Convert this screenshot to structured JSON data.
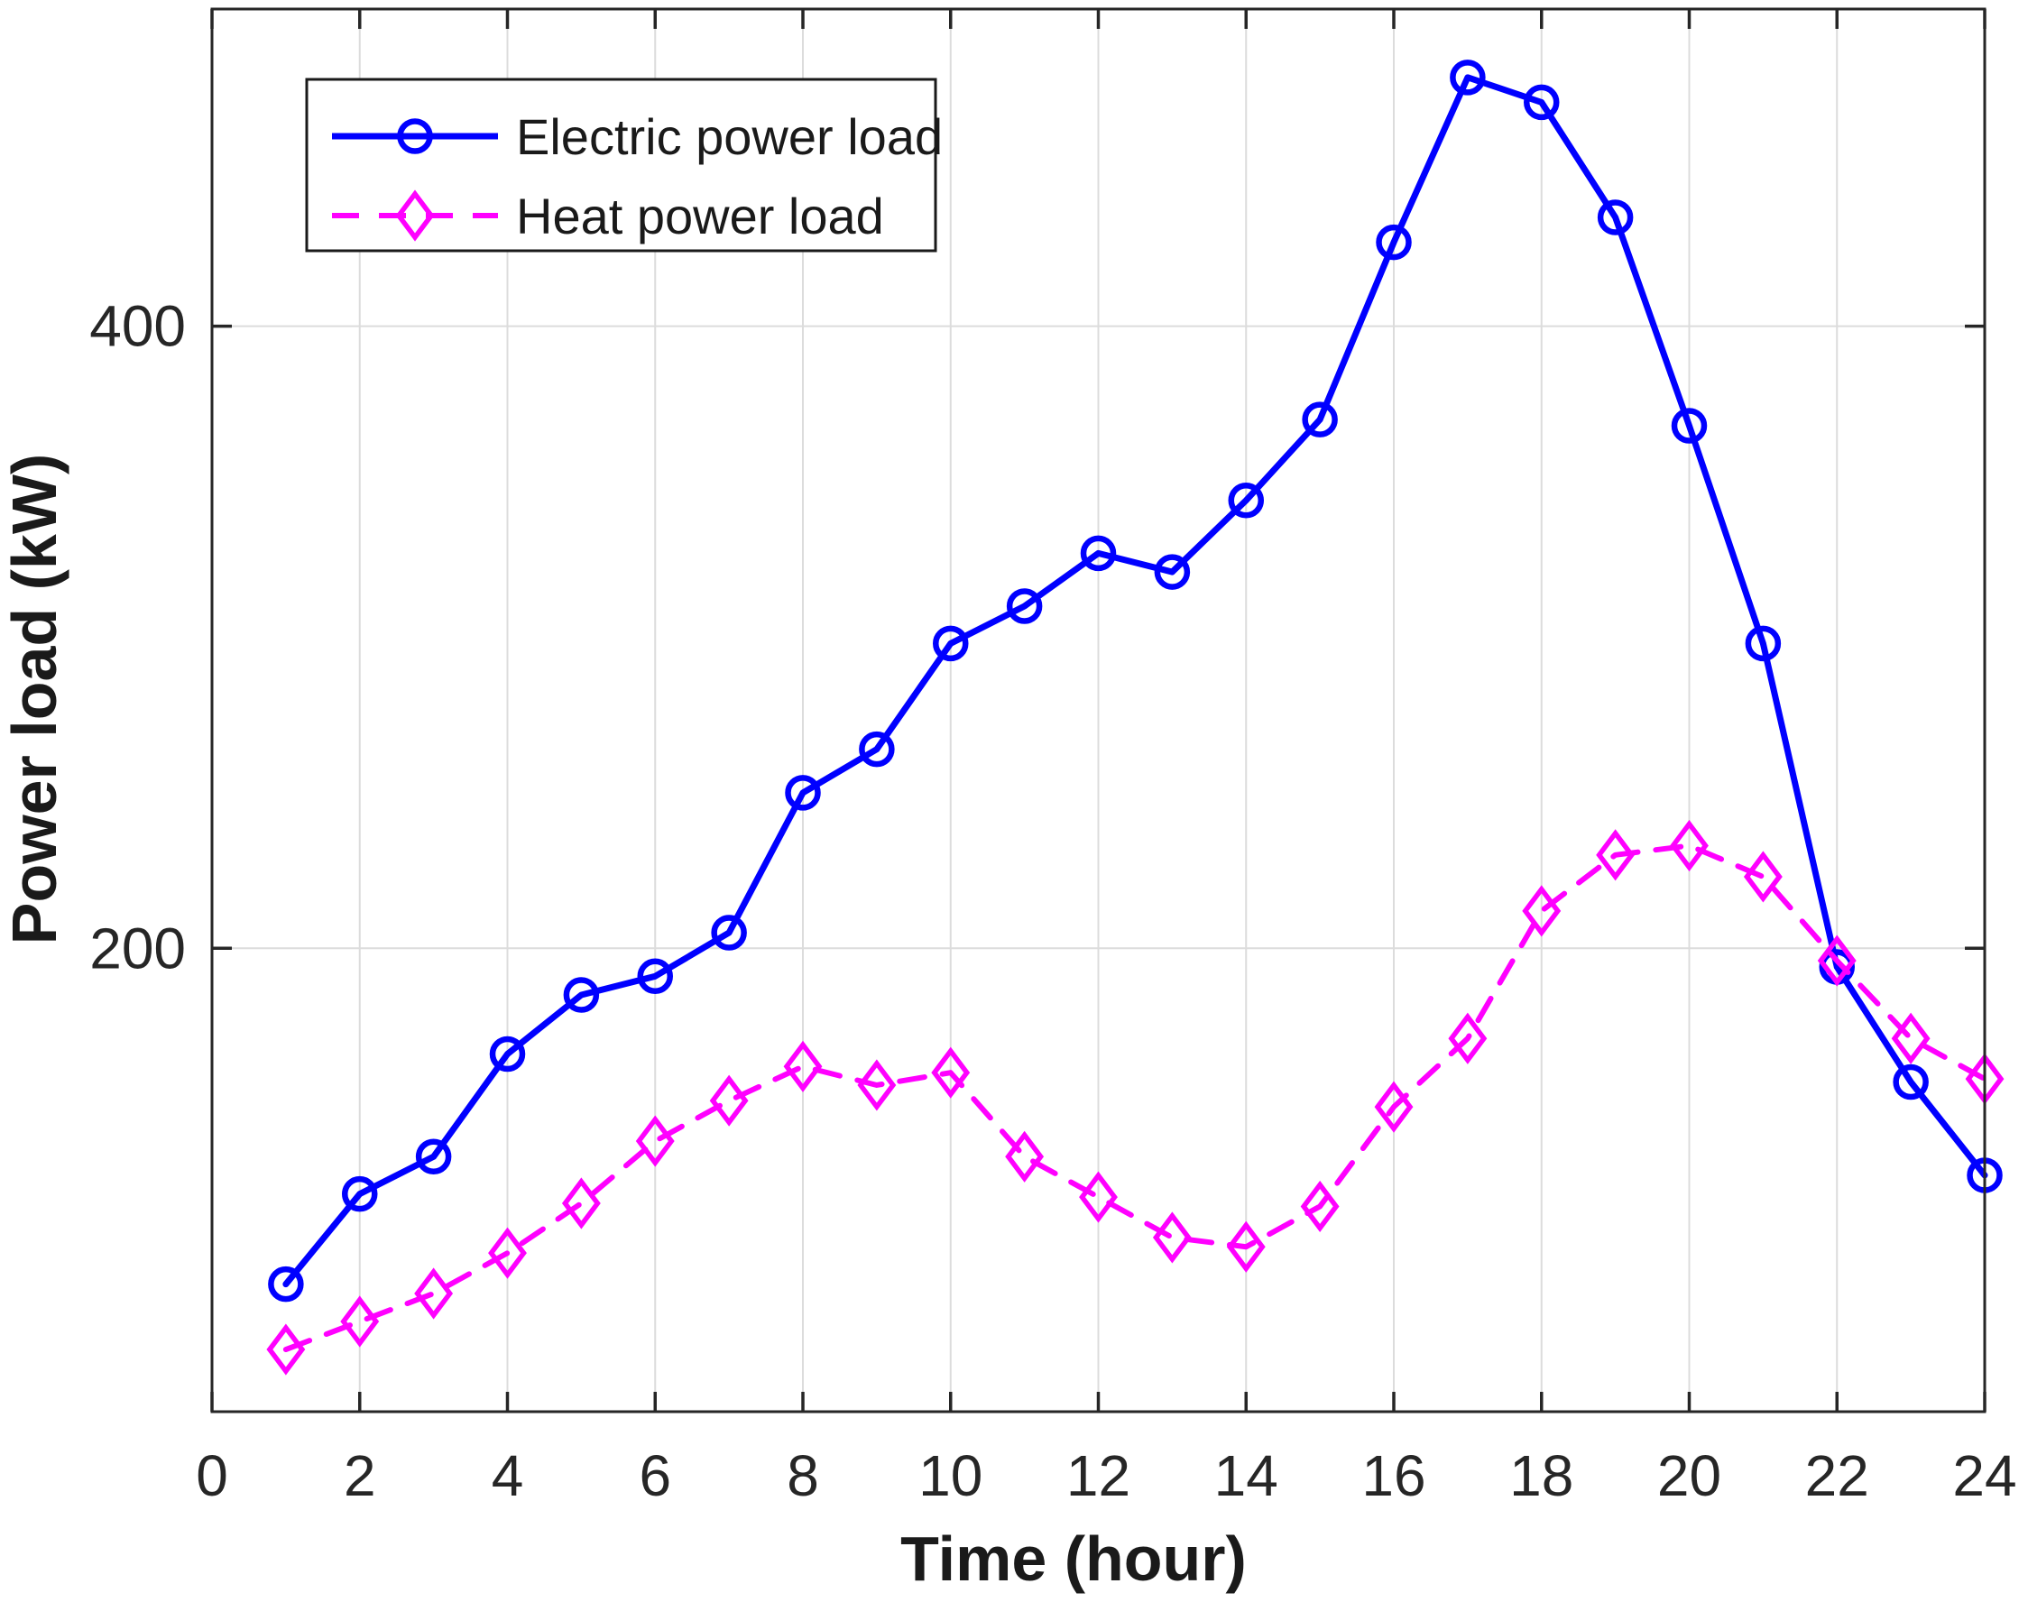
{
  "figure": {
    "background": "#ffffff"
  },
  "chart_data": {
    "type": "line",
    "title": "",
    "xlabel": "Time (hour)",
    "ylabel": "Power load (kW)",
    "x": [
      1,
      2,
      3,
      4,
      5,
      6,
      7,
      8,
      9,
      10,
      11,
      12,
      13,
      14,
      15,
      16,
      17,
      18,
      19,
      20,
      21,
      22,
      23,
      24
    ],
    "series": [
      {
        "name": "Electric power load",
        "color": "#0000ff",
        "line_style": "solid",
        "marker": "circle",
        "values": [
          92,
          121,
          133,
          166,
          185,
          191,
          205,
          250,
          264,
          298,
          310,
          327,
          321,
          344,
          370,
          427,
          480,
          472,
          435,
          368,
          298,
          194,
          157,
          127
        ]
      },
      {
        "name": "Heat power load",
        "color": "#ff00ff",
        "line_style": "dashed",
        "marker": "diamond",
        "values": [
          71,
          80,
          89,
          102,
          118,
          138,
          151,
          162,
          156,
          160,
          133,
          120,
          107,
          104,
          117,
          149,
          171,
          212,
          230,
          233,
          223,
          196,
          171,
          158
        ]
      }
    ],
    "xlim": [
      0,
      24
    ],
    "ylim": [
      51,
      502
    ],
    "x_ticks": [
      0,
      2,
      4,
      6,
      8,
      10,
      12,
      14,
      16,
      18,
      20,
      22,
      24
    ],
    "x_tick_labels": [
      "0",
      "2",
      "4",
      "6",
      "8",
      "10",
      "12",
      "14",
      "16",
      "18",
      "20",
      "22",
      "24"
    ],
    "y_ticks": [
      200,
      400
    ],
    "y_tick_labels": [
      "200",
      "400"
    ],
    "grid": true,
    "legend_position": "top-left",
    "colors": {
      "grid": "#dcdcdc",
      "axis": "#262626",
      "text": "#262626",
      "legend_border": "#1a1a1a",
      "legend_bg": "#ffffff"
    }
  }
}
